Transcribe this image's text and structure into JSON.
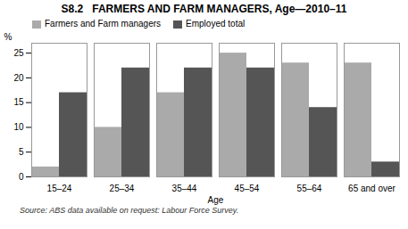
{
  "chart_data": {
    "type": "bar",
    "title": "S8.2   FARMERS AND FARM MANAGERS, Age—2010–11",
    "xlabel": "Age",
    "ylabel": "%",
    "categories": [
      "15–24",
      "25–34",
      "35–44",
      "45–54",
      "55–64",
      "65 and over"
    ],
    "series": [
      {
        "name": "Farmers and Farm managers",
        "color": "#aaaaaa",
        "values": [
          2,
          10,
          17,
          25,
          23,
          23
        ]
      },
      {
        "name": "Employed total",
        "color": "#555555",
        "values": [
          17,
          22,
          22,
          22,
          14,
          3
        ]
      }
    ],
    "ylim": [
      0,
      27
    ],
    "yticks": [
      0,
      5,
      10,
      15,
      20,
      25
    ],
    "legend": "upper left",
    "source": "Source: ABS data available on request: Labour Force Survey."
  }
}
